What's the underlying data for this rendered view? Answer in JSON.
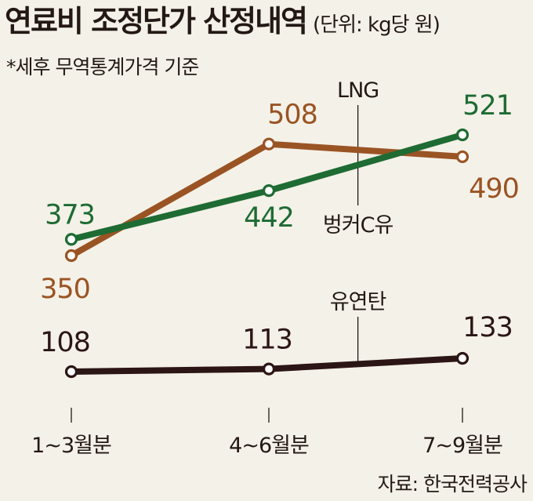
{
  "header": {
    "title": "연료비 조정단가 산정내역",
    "unit": "(단위: kg당 원)",
    "note": "*세후 무역통계가격 기준",
    "source": "자료: 한국전력공사"
  },
  "colors": {
    "background": "#f4f1e8",
    "lng": "#1e6b33",
    "bunker": "#9a5424",
    "coal": "#2c1515",
    "text": "#231815"
  },
  "chart_data": {
    "type": "line",
    "title": "연료비 조정단가 산정내역",
    "subtitle": "(단위: kg당 원)",
    "note": "*세후 무역통계가격 기준",
    "xlabel": "",
    "ylabel": "",
    "categories": [
      "1~3월분",
      "4~6월분",
      "7~9월분"
    ],
    "series": [
      {
        "name": "LNG",
        "key": "lng",
        "values": [
          373,
          442,
          521
        ]
      },
      {
        "name": "벙커C유",
        "key": "bunker",
        "values": [
          350,
          508,
          490
        ]
      },
      {
        "name": "유연탄",
        "key": "coal",
        "values": [
          108,
          113,
          133
        ]
      }
    ],
    "grid": false,
    "axis": "broken"
  }
}
